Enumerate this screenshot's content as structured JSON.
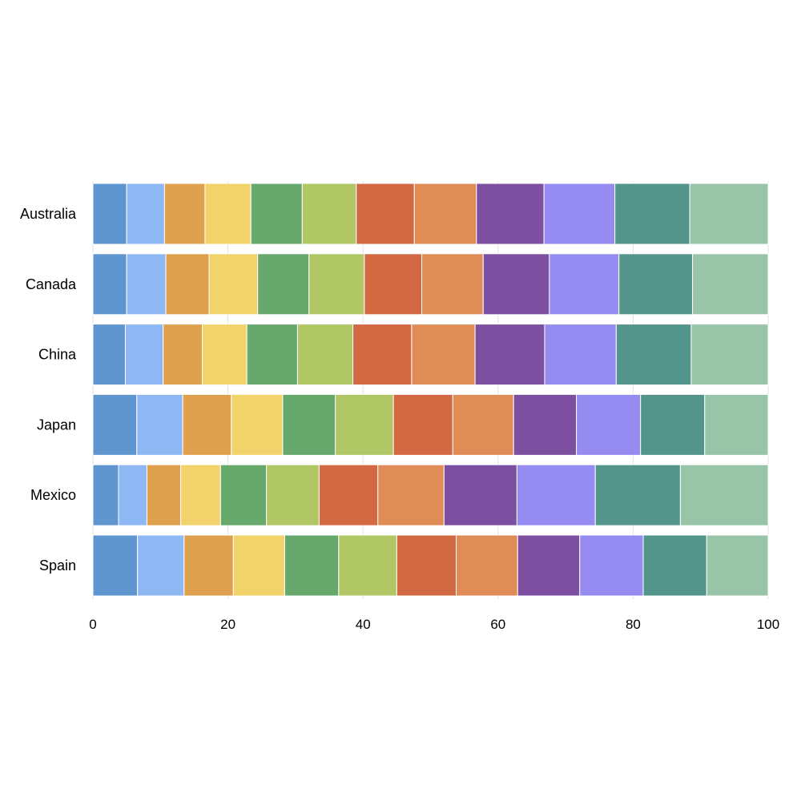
{
  "chart_data": {
    "type": "bar",
    "orientation": "horizontal",
    "stacked": true,
    "normalized": true,
    "categories": [
      "Australia",
      "Canada",
      "China",
      "Japan",
      "Mexico",
      "Spain"
    ],
    "series": [
      {
        "color": "#6096d0",
        "values": [
          5.0,
          5.0,
          4.8,
          6.5,
          3.8,
          6.6
        ]
      },
      {
        "color": "#8eb8f4",
        "values": [
          5.6,
          5.8,
          5.6,
          6.8,
          4.2,
          6.9
        ]
      },
      {
        "color": "#e0a14e",
        "values": [
          6.0,
          6.4,
          5.8,
          7.2,
          5.0,
          7.3
        ]
      },
      {
        "color": "#f2d36b",
        "values": [
          6.8,
          7.2,
          6.6,
          7.6,
          5.9,
          7.6
        ]
      },
      {
        "color": "#67a86c",
        "values": [
          7.6,
          7.6,
          7.5,
          7.8,
          6.8,
          8.0
        ]
      },
      {
        "color": "#b1c765",
        "values": [
          8.0,
          8.2,
          8.2,
          8.6,
          7.8,
          8.6
        ]
      },
      {
        "color": "#d36942",
        "values": [
          8.6,
          8.5,
          8.7,
          8.8,
          8.7,
          8.8
        ]
      },
      {
        "color": "#e08c56",
        "values": [
          9.2,
          9.1,
          9.4,
          9.0,
          9.8,
          9.1
        ]
      },
      {
        "color": "#7d4fa1",
        "values": [
          10.0,
          9.8,
          10.3,
          9.3,
          10.8,
          9.2
        ]
      },
      {
        "color": "#968bf0",
        "values": [
          10.5,
          10.3,
          10.6,
          9.5,
          11.6,
          9.4
        ]
      },
      {
        "color": "#53958b",
        "values": [
          11.1,
          10.9,
          11.1,
          9.5,
          12.6,
          9.4
        ]
      },
      {
        "color": "#98c5a7",
        "values": [
          11.6,
          11.2,
          11.4,
          9.4,
          13.0,
          9.1
        ]
      }
    ],
    "xlim": [
      0,
      100
    ],
    "xticks": [
      "0",
      "20",
      "40",
      "60",
      "80",
      "100"
    ],
    "grid": true,
    "legend": "none"
  }
}
